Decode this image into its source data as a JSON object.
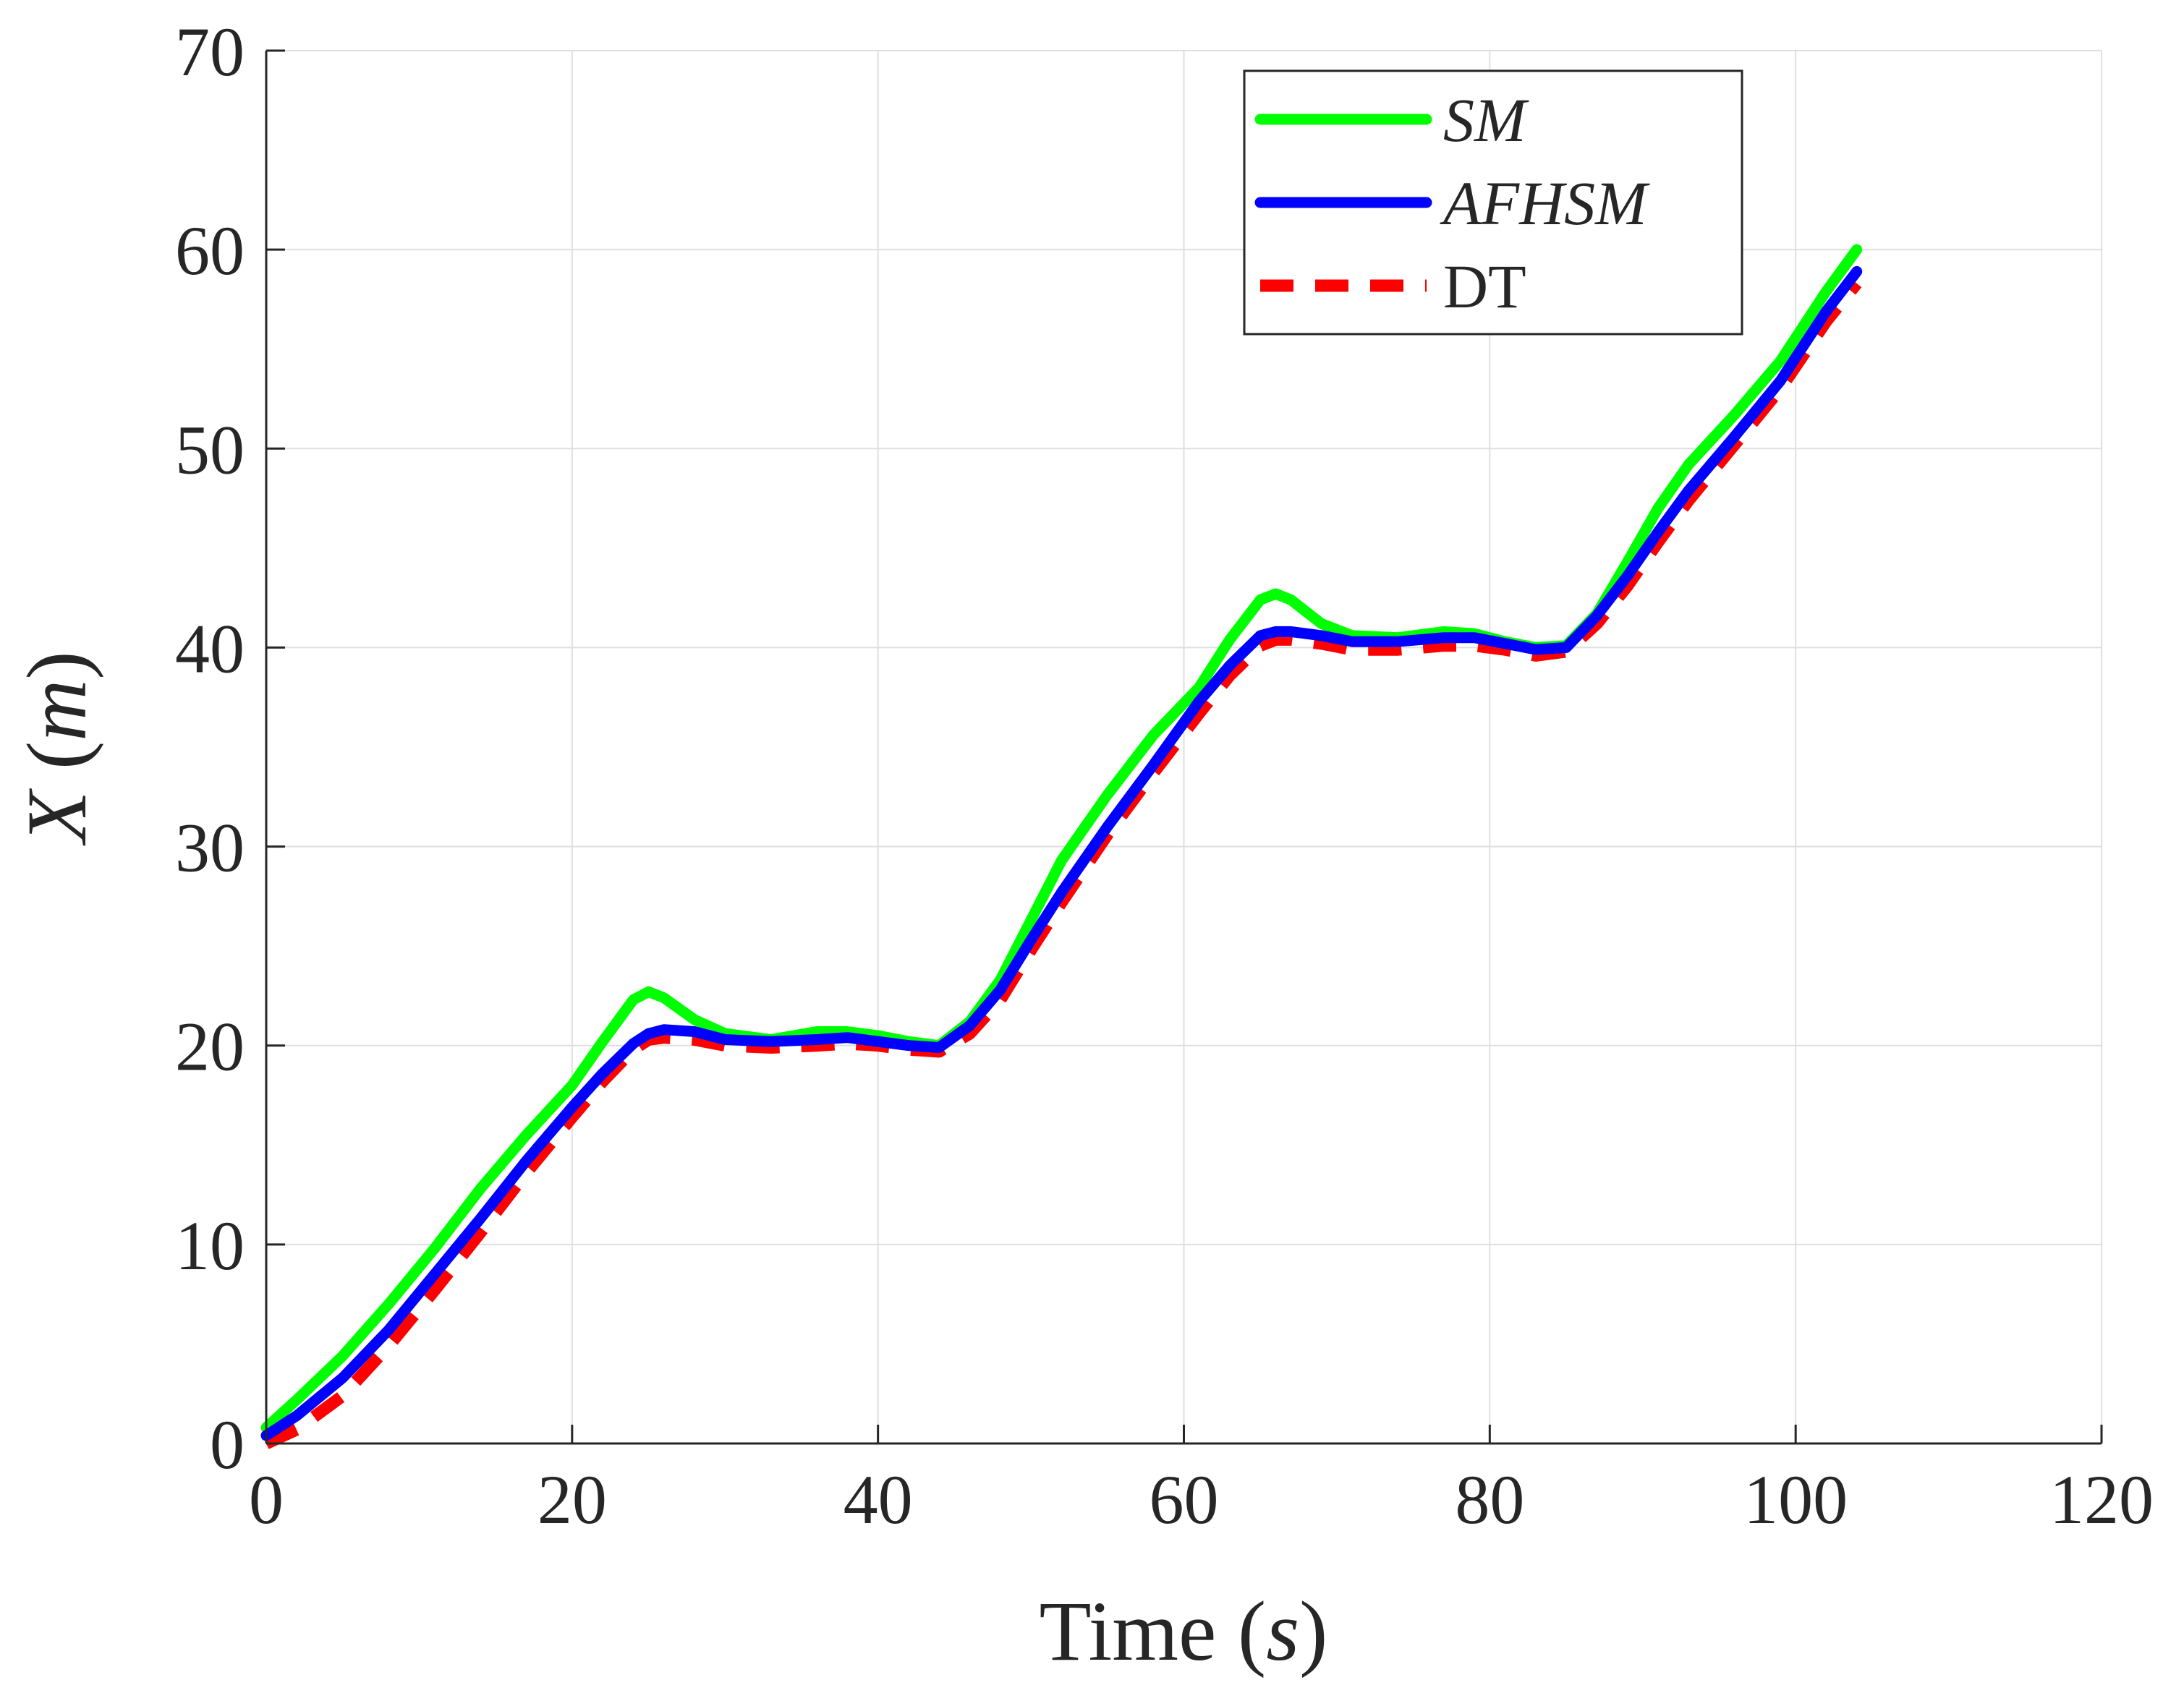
{
  "chart_data": {
    "type": "line",
    "title": "",
    "xlabel": {
      "prefix": "Time (",
      "var": "s",
      "suffix": ")"
    },
    "ylabel": {
      "var": "X",
      "middle": " (",
      "unit": "m",
      "suffix": ")"
    },
    "xlim": [
      0,
      120
    ],
    "ylim": [
      0,
      70
    ],
    "xticks": [
      0,
      20,
      40,
      60,
      80,
      100,
      120
    ],
    "yticks": [
      0,
      10,
      20,
      30,
      40,
      50,
      60,
      70
    ],
    "grid": true,
    "legend_position": "top-right",
    "series": [
      {
        "name": "SM",
        "label_style": "italic",
        "color": "#00ff00",
        "dash": "solid",
        "x": [
          0,
          2,
          5,
          8,
          11,
          14,
          17,
          20,
          22,
          24,
          25,
          26,
          28,
          30,
          33,
          36,
          38,
          40,
          42,
          44,
          46,
          48,
          50,
          52,
          55,
          58,
          61,
          63,
          65,
          66,
          67,
          69,
          71,
          74,
          77,
          79,
          81,
          83,
          85,
          87,
          89,
          91,
          93,
          96,
          99,
          102,
          104
        ],
        "y": [
          0.8,
          2.2,
          4.4,
          7.0,
          9.8,
          12.8,
          15.5,
          18.0,
          20.2,
          22.3,
          22.7,
          22.4,
          21.3,
          20.6,
          20.3,
          20.7,
          20.7,
          20.5,
          20.2,
          20.0,
          21.2,
          23.3,
          26.3,
          29.3,
          32.6,
          35.6,
          38.0,
          40.4,
          42.4,
          42.7,
          42.4,
          41.2,
          40.6,
          40.5,
          40.8,
          40.7,
          40.3,
          40.0,
          40.1,
          41.7,
          44.3,
          47.0,
          49.2,
          51.7,
          54.4,
          57.9,
          60.0
        ]
      },
      {
        "name": "AFHSM",
        "label_style": "italic",
        "color": "#0000ff",
        "dash": "solid",
        "x": [
          0,
          2,
          5,
          8,
          11,
          14,
          17,
          20,
          22,
          24,
          25,
          26,
          28,
          30,
          33,
          36,
          38,
          40,
          42,
          44,
          46,
          48,
          50,
          52,
          55,
          58,
          61,
          63,
          65,
          66,
          67,
          69,
          71,
          74,
          77,
          79,
          81,
          83,
          85,
          87,
          89,
          91,
          93,
          96,
          99,
          102,
          104
        ],
        "y": [
          0.4,
          1.4,
          3.3,
          5.7,
          8.5,
          11.3,
          14.2,
          16.9,
          18.6,
          20.1,
          20.6,
          20.8,
          20.7,
          20.3,
          20.2,
          20.3,
          20.4,
          20.2,
          20.0,
          19.9,
          21.0,
          22.8,
          25.3,
          27.7,
          31.0,
          34.1,
          37.3,
          39.1,
          40.6,
          40.8,
          40.8,
          40.6,
          40.3,
          40.3,
          40.5,
          40.5,
          40.2,
          39.9,
          40.0,
          41.6,
          43.6,
          45.8,
          47.9,
          50.6,
          53.4,
          56.9,
          58.9
        ]
      },
      {
        "name": "DT",
        "label_style": "normal",
        "color": "#ff0000",
        "dash": "dashed",
        "x": [
          0,
          2,
          5,
          8,
          11,
          14,
          17,
          20,
          22,
          24,
          25,
          26,
          28,
          30,
          33,
          36,
          38,
          40,
          42,
          44,
          46,
          48,
          50,
          52,
          55,
          58,
          61,
          63,
          65,
          66,
          67,
          69,
          71,
          74,
          77,
          79,
          81,
          83,
          85,
          87,
          89,
          91,
          93,
          96,
          99,
          102,
          104
        ],
        "y": [
          0.0,
          0.7,
          2.4,
          4.9,
          7.7,
          10.6,
          13.6,
          16.4,
          18.2,
          19.8,
          20.3,
          20.4,
          20.3,
          20.0,
          19.9,
          20.0,
          20.1,
          20.0,
          19.8,
          19.7,
          20.6,
          22.3,
          24.8,
          27.2,
          30.6,
          33.7,
          36.7,
          38.6,
          40.1,
          40.4,
          40.4,
          40.2,
          39.9,
          39.9,
          40.1,
          40.1,
          39.9,
          39.6,
          39.8,
          41.2,
          43.1,
          45.3,
          47.4,
          50.2,
          53.0,
          56.4,
          58.3
        ]
      }
    ]
  }
}
